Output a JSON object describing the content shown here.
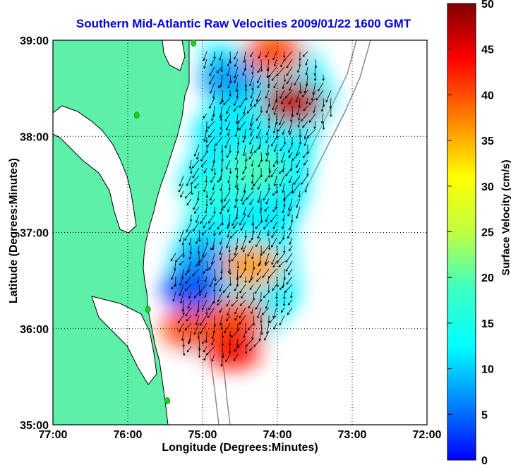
{
  "title": "Southern Mid-Atlantic Raw Velocities 2009/01/22 1600 GMT",
  "x_axis": {
    "label": "Longitude (Degrees:Minutes)",
    "ticks": [
      {
        "value": -77,
        "label": "77:00"
      },
      {
        "value": -76,
        "label": "76:00"
      },
      {
        "value": -75,
        "label": "75:00"
      },
      {
        "value": -74,
        "label": "74:00"
      },
      {
        "value": -73,
        "label": "73:00"
      },
      {
        "value": -72,
        "label": "72:00"
      }
    ],
    "range": [
      -77,
      -72
    ]
  },
  "y_axis": {
    "label": "Latitude (Degrees:Minutes)",
    "ticks": [
      {
        "value": 35,
        "label": "35:00"
      },
      {
        "value": 36,
        "label": "36:00"
      },
      {
        "value": 37,
        "label": "37:00"
      },
      {
        "value": 38,
        "label": "38:00"
      },
      {
        "value": 39,
        "label": "39:00"
      }
    ],
    "range": [
      35,
      39
    ]
  },
  "colorbar": {
    "label": "Surface Velocity (cm/s)",
    "ticks": [
      "0",
      "5",
      "10",
      "15",
      "20",
      "25",
      "30",
      "35",
      "40",
      "45",
      "50"
    ],
    "range": [
      0,
      50
    ],
    "colormap": "jet"
  },
  "colors": {
    "land": "#5cf0a8",
    "ocean": "#ffffff",
    "title": "#0000dd",
    "coastline": "#000000",
    "bathymetry": "#8c8c8c",
    "station": "#22cc22"
  },
  "grid": "dotted",
  "stations": [
    {
      "lon": -75.12,
      "lat": 38.97
    },
    {
      "lon": -75.88,
      "lat": 38.22
    },
    {
      "lon": -75.73,
      "lat": 36.2
    },
    {
      "lon": -75.47,
      "lat": 35.25
    }
  ],
  "chart_data": {
    "type": "heatmap",
    "title": "Southern Mid-Atlantic Raw Velocities 2009/01/22 1600 GMT",
    "xlabel": "Longitude (Degrees:Minutes)",
    "ylabel": "Latitude (Degrees:Minutes)",
    "xlim": [
      -77,
      -72
    ],
    "ylim": [
      35,
      39
    ],
    "colorbar_label": "Surface Velocity (cm/s)",
    "clim": [
      0,
      50
    ],
    "speed_regions": [
      {
        "lon": -73.8,
        "lat": 38.35,
        "speed": 47
      },
      {
        "lon": -74.05,
        "lat": 38.85,
        "speed": 40
      },
      {
        "lon": -74.65,
        "lat": 38.6,
        "speed": 14
      },
      {
        "lon": -74.75,
        "lat": 38.05,
        "speed": 18
      },
      {
        "lon": -74.3,
        "lat": 37.65,
        "speed": 22
      },
      {
        "lon": -74.85,
        "lat": 37.4,
        "speed": 20
      },
      {
        "lon": -74.95,
        "lat": 36.7,
        "speed": 14
      },
      {
        "lon": -74.35,
        "lat": 36.65,
        "speed": 36
      },
      {
        "lon": -74.55,
        "lat": 36.1,
        "speed": 40
      },
      {
        "lon": -74.6,
        "lat": 35.8,
        "speed": 43
      },
      {
        "lon": -75.15,
        "lat": 36.0,
        "speed": 40
      },
      {
        "lon": -75.15,
        "lat": 36.4,
        "speed": 10
      }
    ],
    "vector_field": {
      "description_of_flow": "southward",
      "direction_deg": 200
    }
  }
}
